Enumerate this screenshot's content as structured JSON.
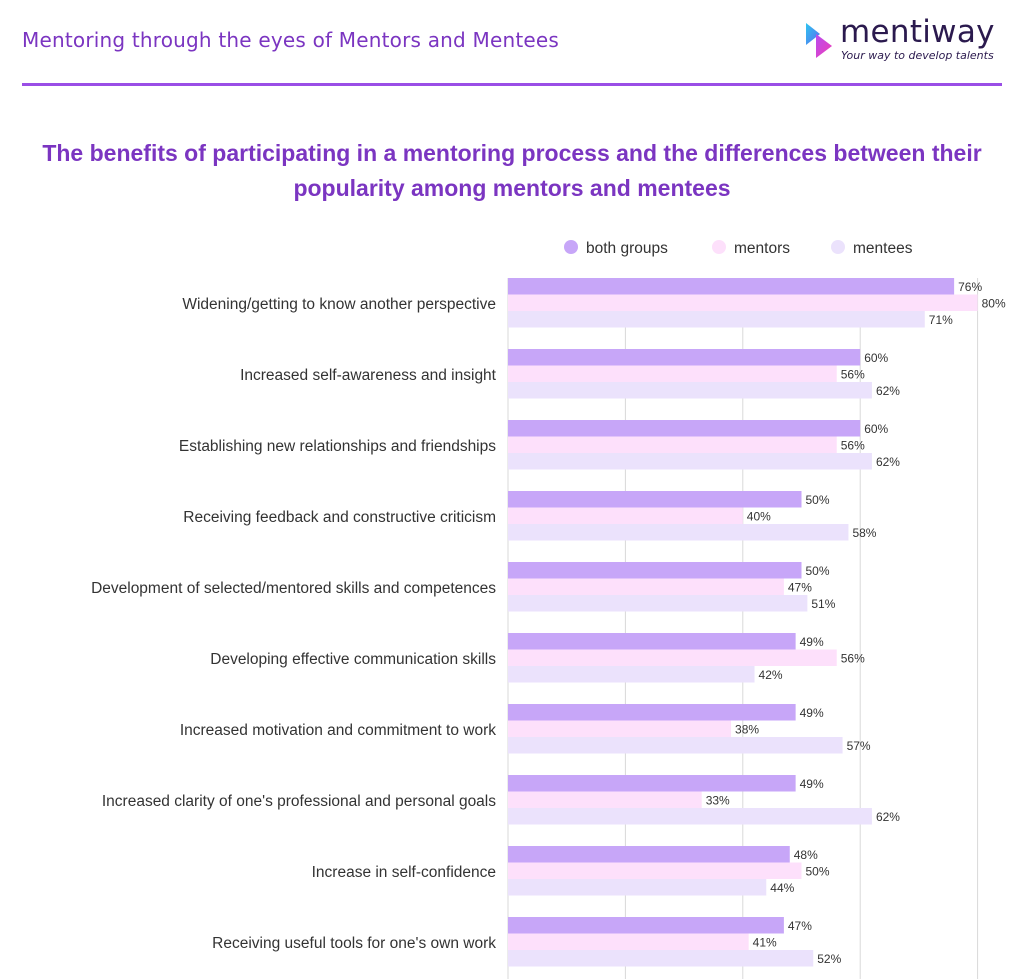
{
  "header": {
    "title": "Mentoring through the eyes of Mentors and Mentees"
  },
  "logo": {
    "name": "mentiway",
    "tagline": "Your way to develop talents"
  },
  "colors": {
    "accent": "#7b35c1",
    "both_groups": "#c7a6f8",
    "mentors": "#fde0fb",
    "mentees": "#ebe2fc"
  },
  "chart_data": {
    "type": "bar",
    "orientation": "horizontal",
    "title": "The benefits of participating in a mentoring process and the differences between their popularity among mentors and mentees",
    "legend_position": "top",
    "grid": true,
    "xlim": [
      0,
      80
    ],
    "value_suffix": "%",
    "categories": [
      "Widening/getting to know another perspective",
      "Increased self-awareness and insight",
      "Establishing new relationships and friendships",
      "Receiving feedback and constructive criticism",
      "Development of selected/mentored skills and competences",
      "Developing effective communication skills",
      "Increased motivation and commitment to work",
      "Increased clarity of one's professional and personal goals",
      "Increase in self-confidence",
      "Receiving useful tools for one's own work"
    ],
    "series": [
      {
        "name": "both groups",
        "color": "#c7a6f8",
        "values": [
          76,
          60,
          60,
          50,
          50,
          49,
          49,
          49,
          48,
          47
        ]
      },
      {
        "name": "mentors",
        "color": "#fde0fb",
        "values": [
          80,
          56,
          56,
          40,
          47,
          56,
          38,
          33,
          50,
          41
        ]
      },
      {
        "name": "mentees",
        "color": "#ebe2fc",
        "values": [
          71,
          62,
          62,
          58,
          51,
          42,
          57,
          62,
          44,
          52
        ]
      }
    ]
  }
}
